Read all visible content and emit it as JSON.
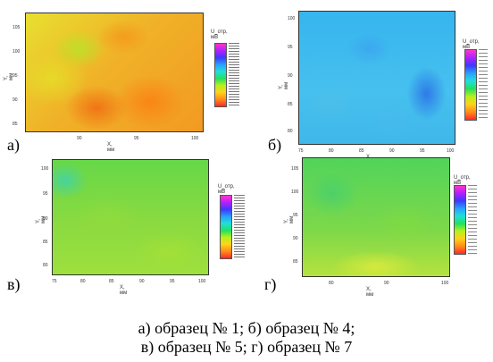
{
  "panels": [
    {
      "label": "а)",
      "x_axis": {
        "label": "X, мм",
        "ticks": [
          "90",
          "95",
          "100"
        ]
      },
      "y_axis": {
        "label": "Y, мм",
        "ticks": [
          "105",
          "100",
          "95",
          "90",
          "85"
        ]
      },
      "legend_title": "U_отр, мВ"
    },
    {
      "label": "б)",
      "x_axis": {
        "label": "X, мм",
        "ticks": [
          "75",
          "80",
          "85",
          "90",
          "95",
          "100"
        ]
      },
      "y_axis": {
        "label": "Y, мм",
        "ticks": [
          "100",
          "95",
          "90",
          "85",
          "80"
        ]
      },
      "legend_title": "U_отр, мВ"
    },
    {
      "label": "в)",
      "x_axis": {
        "label": "X, мм",
        "ticks": [
          "75",
          "80",
          "85",
          "90",
          "95",
          "100"
        ]
      },
      "y_axis": {
        "label": "Y, мм",
        "ticks": [
          "100",
          "95",
          "90",
          "85",
          "80"
        ]
      },
      "legend_title": "U_отр, мВ"
    },
    {
      "label": "г)",
      "x_axis": {
        "label": "X, мм",
        "ticks": [
          "80",
          "90",
          "100"
        ]
      },
      "y_axis": {
        "label": "Y, мм",
        "ticks": [
          "105",
          "100",
          "95",
          "90",
          "85"
        ]
      },
      "legend_title": "U_отр, мВ"
    }
  ],
  "caption": {
    "line1": "а) образец № 1; б) образец № 4;",
    "line2": "в) образец № 5; г) образец № 7"
  },
  "colors": {
    "legend_gradient": [
      "#ff2a2a",
      "#ff8c1a",
      "#ffd21a",
      "#b8f01a",
      "#22e060",
      "#20e0d8",
      "#2aa0ff",
      "#3b3bff",
      "#b020ff",
      "#ff33cc"
    ]
  }
}
